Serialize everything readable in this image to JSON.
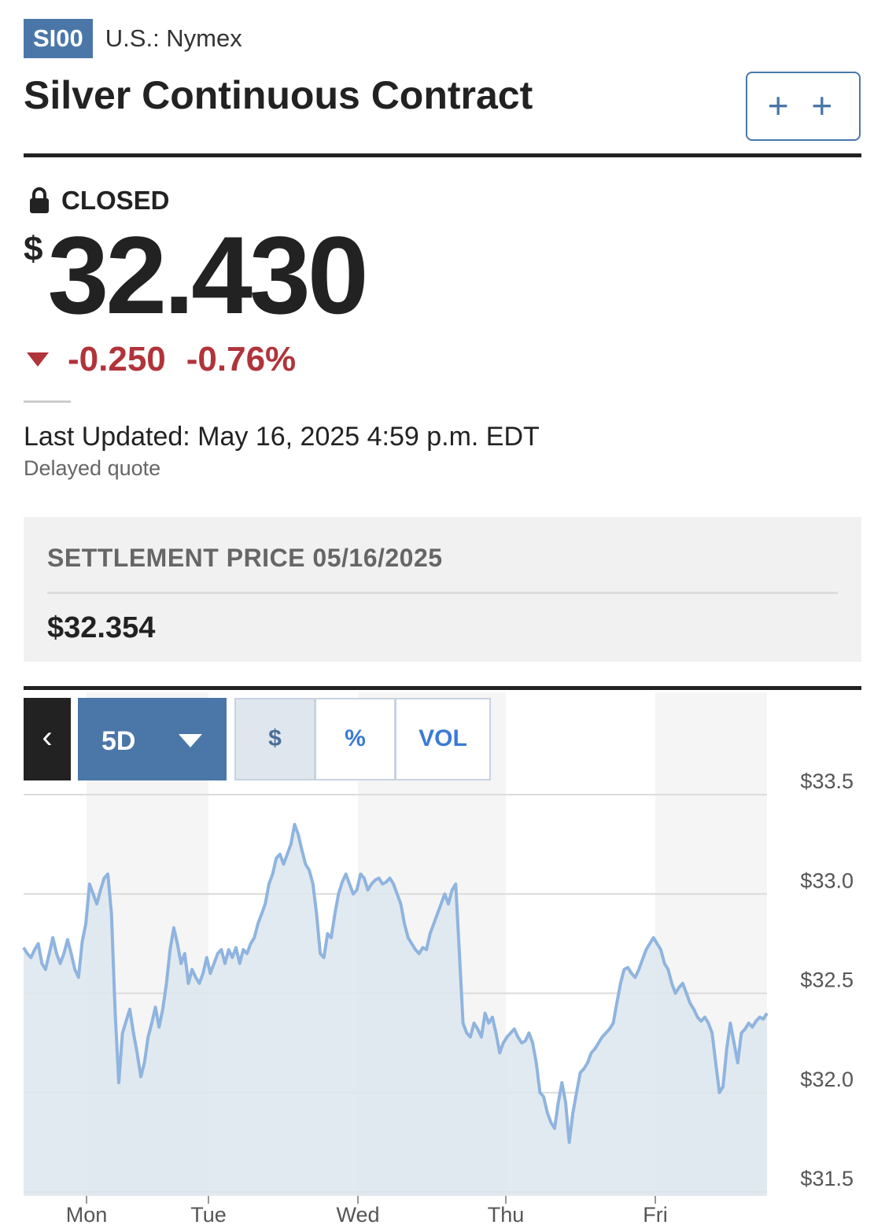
{
  "ticker": {
    "symbol": "SI00",
    "exchange": "U.S.: Nymex"
  },
  "title": "Silver Continuous Contract",
  "watch_button": {
    "label": "+ +"
  },
  "status": {
    "label": "CLOSED",
    "icon": "lock-icon"
  },
  "price": {
    "currency": "$",
    "value": "32.430"
  },
  "change": {
    "icon": "down-triangle-icon",
    "value": "-0.250",
    "percent": "-0.76%"
  },
  "updated": {
    "text": "Last Updated: May 16, 2025 4:59 p.m. EDT",
    "note": "Delayed quote"
  },
  "settlement": {
    "label": "SETTLEMENT PRICE 05/16/2025",
    "value": "$32.354"
  },
  "chart_controls": {
    "back_icon": "chevron-left-icon",
    "range": "5D",
    "segments": [
      "$",
      "%",
      "VOL"
    ],
    "active_segment": "$"
  },
  "colors": {
    "accent": "#4a77a8",
    "negative": "#b0343a",
    "line": "#8fb4df",
    "fill": "#dde6ef"
  },
  "chart_data": {
    "type": "area",
    "title": "",
    "xlabel": "",
    "ylabel": "",
    "x_tick_labels": [
      "Mon",
      "Tue",
      "Wed",
      "Thu",
      "Fri"
    ],
    "y_tick_labels": [
      "$33.5",
      "$33.0",
      "$32.5",
      "$32.0",
      "$31.5"
    ],
    "y_ticks": [
      33.5,
      33.0,
      32.5,
      32.0,
      31.5
    ],
    "ylim": [
      31.5,
      33.5
    ],
    "grid": true,
    "series": [
      {
        "values": [
          32.73,
          32.7,
          32.68,
          32.72,
          32.75,
          32.65,
          32.62,
          32.7,
          32.78,
          32.7,
          32.65,
          32.7,
          32.77,
          32.7,
          32.62,
          32.58,
          32.76,
          32.85,
          33.05,
          33.0,
          32.95,
          33.02,
          33.08,
          33.1,
          32.9,
          32.4,
          32.05,
          32.3,
          32.36,
          32.42,
          32.3,
          32.2,
          32.08,
          32.15,
          32.28,
          32.35,
          32.43,
          32.33,
          32.42,
          32.55,
          32.72,
          32.83,
          32.75,
          32.65,
          32.7,
          32.55,
          32.62,
          32.58,
          32.55,
          32.6,
          32.68,
          32.6,
          32.65,
          32.7,
          32.72,
          32.65,
          32.72,
          32.68,
          32.73,
          32.65,
          32.72,
          32.7,
          32.75,
          32.78,
          32.85,
          32.9,
          32.95,
          33.05,
          33.1,
          33.18,
          33.2,
          33.15,
          33.2,
          33.25,
          33.35,
          33.3,
          33.22,
          33.15,
          33.12,
          33.05,
          32.9,
          32.7,
          32.68,
          32.8,
          32.78,
          32.9,
          33.0,
          33.06,
          33.1,
          33.05,
          33.0,
          33.02,
          33.1,
          33.08,
          33.02,
          33.05,
          33.07,
          33.08,
          33.05,
          33.06,
          33.08,
          33.05,
          33.0,
          32.95,
          32.85,
          32.78,
          32.75,
          32.72,
          32.7,
          32.73,
          32.72,
          32.8,
          32.85,
          32.9,
          32.95,
          33.0,
          32.95,
          33.02,
          33.05,
          32.7,
          32.35,
          32.3,
          32.28,
          32.35,
          32.32,
          32.28,
          32.4,
          32.35,
          32.38,
          32.3,
          32.2,
          32.25,
          32.28,
          32.3,
          32.32,
          32.28,
          32.25,
          32.26,
          32.3,
          32.25,
          32.15,
          32.0,
          31.98,
          31.9,
          31.85,
          31.82,
          31.95,
          32.05,
          31.95,
          31.75,
          31.9,
          32.0,
          32.1,
          32.12,
          32.15,
          32.2,
          32.22,
          32.25,
          32.28,
          32.3,
          32.32,
          32.35,
          32.45,
          32.55,
          32.62,
          32.63,
          32.6,
          32.58,
          32.62,
          32.67,
          32.72,
          32.75,
          32.78,
          32.75,
          32.72,
          32.65,
          32.62,
          32.55,
          32.5,
          32.53,
          32.55,
          32.5,
          32.45,
          32.42,
          32.38,
          32.36,
          32.38,
          32.35,
          32.3,
          32.15,
          32.0,
          32.03,
          32.22,
          32.35,
          32.25,
          32.15,
          32.3,
          32.32,
          32.35,
          32.33,
          32.36,
          32.38,
          32.37,
          32.4
        ]
      }
    ]
  }
}
